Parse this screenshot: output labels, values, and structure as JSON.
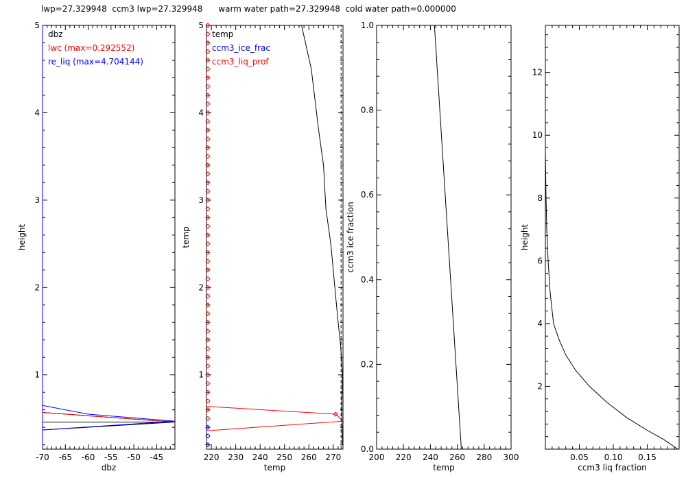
{
  "header": {
    "title": "lwp=27.329948  ccm3 lwp=27.329948      warm water path=27.329948  cold water path=0.000000"
  },
  "colors": {
    "black": "#000000",
    "red": "#ff0000",
    "blue": "#0000ff"
  },
  "chart_data": [
    {
      "type": "line",
      "panel": "dbz",
      "xlabel": "dbz",
      "ylabel": "height",
      "xlim": [
        -70,
        -41
      ],
      "ylim": [
        0.15,
        5.0
      ],
      "xticks": [
        -70,
        -65,
        -60,
        -55,
        -50,
        -45
      ],
      "yticks": [
        1,
        2,
        3,
        4,
        5
      ],
      "legend": [
        {
          "label": "dbz",
          "color": "#000000"
        },
        {
          "label": "lwc (max=0.292552)",
          "color": "#ff0000"
        },
        {
          "label": "re_liq (max=4.704144)",
          "color": "#0000ff"
        }
      ],
      "series": [
        {
          "name": "dbz",
          "color": "#000000",
          "points": [
            [
              -70,
              0.57
            ],
            [
              -41,
              0.46
            ],
            [
              -70,
              0.37
            ]
          ]
        },
        {
          "name": "dbz-axis",
          "color": "#000000",
          "points": [
            [
              -70,
              0.46
            ],
            [
              -41,
              0.46
            ]
          ]
        },
        {
          "name": "lwc",
          "color": "#ff0000",
          "points": [
            [
              -70,
              0.57
            ],
            [
              -41,
              0.46
            ]
          ]
        },
        {
          "name": "re_liq",
          "color": "#0000ff",
          "points": [
            [
              -70,
              0.65
            ],
            [
              -60,
              0.55
            ],
            [
              -41,
              0.47
            ],
            [
              -70,
              0.37
            ]
          ]
        },
        {
          "name": "re_liq-edge",
          "color": "#0000ff",
          "points": [
            [
              -70,
              0.15
            ],
            [
              -70,
              5.0
            ]
          ]
        }
      ]
    },
    {
      "type": "line",
      "panel": "temp",
      "xlabel": "temp",
      "ylabel": "temp",
      "xlim": [
        218,
        274
      ],
      "ylim": [
        0.15,
        5.0
      ],
      "xticks": [
        220,
        230,
        240,
        250,
        260,
        270
      ],
      "yticks": [
        1,
        2,
        3,
        4,
        5
      ],
      "legend": [
        {
          "label": "temp",
          "color": "#000000"
        },
        {
          "label": "ccm3_ice_frac",
          "color": "#0000ff"
        },
        {
          "label": "ccm3_liq_prof",
          "color": "#ff0000"
        }
      ],
      "series": [
        {
          "name": "temp",
          "color": "#000000",
          "points": [
            [
              257,
              5.0
            ],
            [
              261,
              4.5
            ],
            [
              264,
              3.8
            ],
            [
              266,
              3.4
            ],
            [
              267,
              2.9
            ],
            [
              269,
              2.5
            ],
            [
              270,
              2.2
            ],
            [
              271,
              1.9
            ],
            [
              272,
              1.6
            ],
            [
              273,
              1.35
            ],
            [
              273.8,
              1.0
            ],
            [
              273.5,
              0.6
            ],
            [
              273.8,
              0.2
            ]
          ]
        },
        {
          "name": "temp-dash",
          "color": "#000000",
          "dashed": true,
          "points": [
            [
              273.2,
              0.15
            ],
            [
              273.2,
              5.0
            ]
          ]
        },
        {
          "name": "ccm3_liq_prof",
          "color": "#ff0000",
          "points": [
            [
              218,
              0.64
            ],
            [
              271,
              0.55
            ],
            [
              274,
              0.47
            ],
            [
              218,
              0.36
            ]
          ]
        }
      ]
    },
    {
      "type": "line",
      "panel": "ice-fraction",
      "xlabel": "temp",
      "ylabel": "ccm3 ice fraction",
      "xlim": [
        200,
        300
      ],
      "ylim": [
        0.0,
        1.0
      ],
      "xticks": [
        200,
        220,
        240,
        260,
        280,
        300
      ],
      "yticks": [
        0.0,
        0.2,
        0.4,
        0.6,
        0.8,
        1.0
      ],
      "ytick_labels": [
        "0.0",
        "0.2",
        "0.4",
        "0.6",
        "0.8",
        "1.0"
      ],
      "series": [
        {
          "name": "ice_frac",
          "color": "#000000",
          "points": [
            [
              243,
              1.0
            ],
            [
              263,
              0.0
            ]
          ]
        }
      ]
    },
    {
      "type": "line",
      "panel": "liq-fraction",
      "xlabel": "ccm3 liq fraction",
      "ylabel": "height",
      "xlim": [
        0.0,
        0.197
      ],
      "ylim": [
        0.0,
        13.5
      ],
      "xticks": [
        0.05,
        0.1,
        0.15
      ],
      "xtick_labels": [
        "0.05",
        "0.10",
        "0.15"
      ],
      "yticks": [
        2,
        4,
        6,
        8,
        10,
        12
      ],
      "series": [
        {
          "name": "liq_frac",
          "color": "#000000",
          "points": [
            [
              0.0,
              9.5
            ],
            [
              0.001,
              8.0
            ],
            [
              0.002,
              7.0
            ],
            [
              0.004,
              6.0
            ],
            [
              0.007,
              5.0
            ],
            [
              0.012,
              4.0
            ],
            [
              0.02,
              3.5
            ],
            [
              0.03,
              3.0
            ],
            [
              0.045,
              2.5
            ],
            [
              0.065,
              2.0
            ],
            [
              0.09,
              1.5
            ],
            [
              0.12,
              1.0
            ],
            [
              0.15,
              0.6
            ],
            [
              0.175,
              0.3
            ],
            [
              0.195,
              0.0
            ]
          ]
        }
      ]
    }
  ]
}
